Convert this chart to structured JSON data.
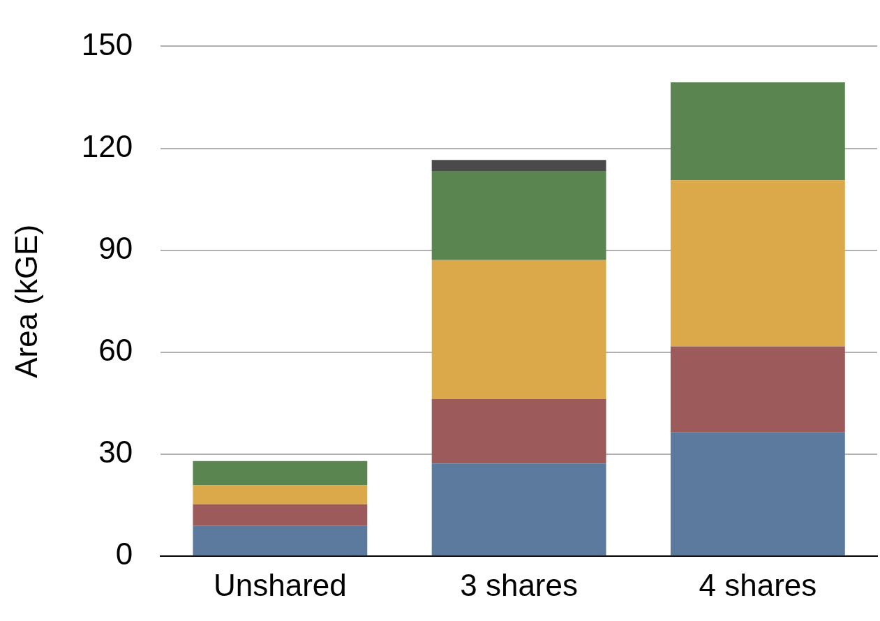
{
  "chart_data": {
    "type": "bar",
    "stacked": true,
    "ylabel": "Area (kGE)",
    "categories": [
      "Unshared",
      "3 shares",
      "4 shares"
    ],
    "series": [
      {
        "color": "#5b7a9e",
        "values": [
          9,
          27.3,
          36.4
        ]
      },
      {
        "color": "#9c5a5a",
        "values": [
          6.3,
          19,
          25.3
        ]
      },
      {
        "color": "#dba94a",
        "values": [
          5.6,
          40.8,
          48.9
        ]
      },
      {
        "color": "#5a8550",
        "values": [
          7.1,
          26.1,
          28.8
        ]
      },
      {
        "color": "#4a4a4a",
        "values": [
          null,
          3.4,
          null
        ]
      }
    ],
    "ylim": [
      0,
      150
    ],
    "yticks": [
      0,
      30,
      60,
      90,
      120,
      150
    ],
    "grid": "y"
  }
}
